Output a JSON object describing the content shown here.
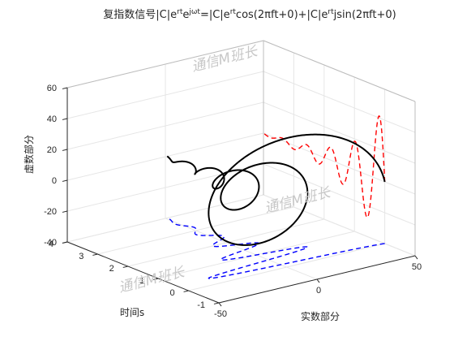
{
  "chart_data": {
    "type": "line3d",
    "title_parts": [
      "复指数信号|C|e",
      "rt",
      "e",
      "jωt",
      "=|C|e",
      "rt",
      "cos(2πft+0)+|C|e",
      "rt",
      "jsin(2πft+0)"
    ],
    "xlabel": "实数部分",
    "ylabel": "时间s",
    "zlabel": "虚数部分",
    "xlim": [
      -50,
      50
    ],
    "ylim": [
      -1,
      4
    ],
    "zlim": [
      -40,
      60
    ],
    "xticks": [
      "-50",
      "0",
      "50"
    ],
    "yticks": [
      "-1",
      "0",
      "1",
      "2",
      "3",
      "4"
    ],
    "zticks": [
      "-40",
      "-20",
      "0",
      "20",
      "40",
      "60"
    ],
    "grid": true,
    "series": [
      {
        "style": "solid",
        "color": "#000000",
        "t_range": [
          0,
          4
        ],
        "amplitude": 50,
        "decay": -1,
        "freq": 1.25
      },
      {
        "style": "dashed",
        "color": "#ff0000",
        "t_range": [
          0,
          4
        ],
        "amplitude": 50,
        "decay": -1,
        "freq": 1.25
      },
      {
        "style": "dashed",
        "color": "#0000ff",
        "t_range": [
          0,
          4
        ],
        "amplitude": 50,
        "decay": -1,
        "freq": 1.25
      }
    ],
    "watermarks": [
      "通信M班长",
      "通信M班长",
      "通信M班长"
    ]
  }
}
